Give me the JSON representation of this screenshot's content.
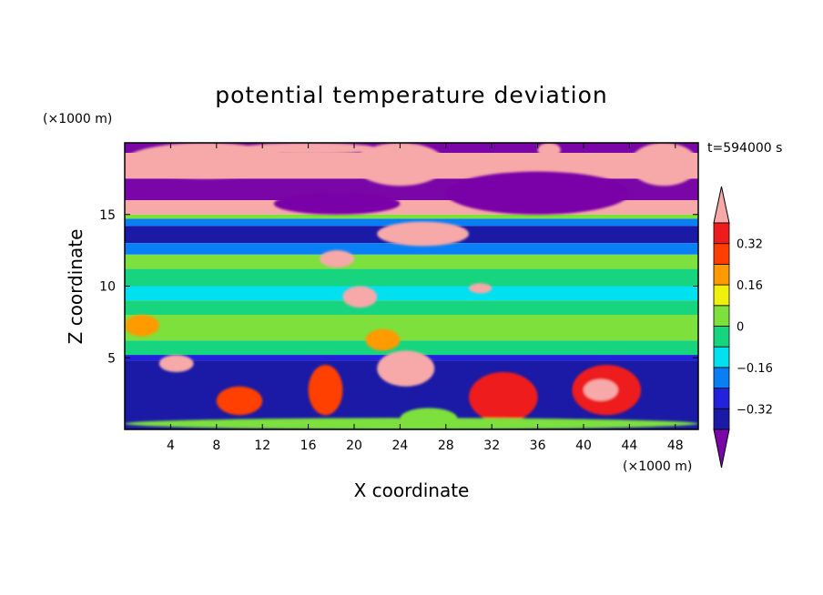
{
  "chart_data": {
    "type": "heatmap",
    "title": "potential temperature deviation",
    "xlabel": "X coordinate",
    "ylabel": "Z coordinate",
    "x_unit": "(×1000 m)",
    "y_unit": "(×1000 m)",
    "time_label": "t=594000 s",
    "xlim": [
      0,
      50
    ],
    "ylim": [
      0,
      20
    ],
    "x_ticks": [
      4,
      8,
      12,
      16,
      20,
      24,
      28,
      32,
      36,
      40,
      44,
      48
    ],
    "y_ticks": [
      5,
      10,
      15
    ],
    "x_tick_labels": [
      "4",
      "8",
      "12",
      "16",
      "20",
      "24",
      "28",
      "32",
      "36",
      "40",
      "44",
      "48"
    ],
    "y_tick_labels": [
      "5",
      "10",
      "15"
    ],
    "grid": false,
    "legend": "right",
    "colorbar": {
      "levels": [
        -0.4,
        -0.32,
        -0.24,
        -0.16,
        -0.08,
        0,
        0.08,
        0.16,
        0.24,
        0.32,
        0.4
      ],
      "labels": [
        {
          "value": 0.32,
          "text": "0.32"
        },
        {
          "value": 0.16,
          "text": "0.16"
        },
        {
          "value": 0,
          "text": "0"
        },
        {
          "value": -0.16,
          "text": "−0.16"
        },
        {
          "value": -0.32,
          "text": "−0.32"
        }
      ],
      "colors": [
        "#7a06a8",
        "#1a1aa6",
        "#2222dd",
        "#0a7ff5",
        "#00e0ee",
        "#17d47f",
        "#7de03c",
        "#f0f00e",
        "#ff9a00",
        "#ff3f00",
        "#ee1c1c",
        "#f7a8a8"
      ]
    },
    "bands": [
      {
        "z": [
          19.3,
          20.0
        ],
        "value": -0.45
      },
      {
        "z": [
          17.5,
          19.3
        ],
        "value": 0.45
      },
      {
        "z": [
          16.0,
          17.5
        ],
        "value": -0.45
      },
      {
        "z": [
          15.0,
          16.0
        ],
        "value": 0.45
      },
      {
        "z": [
          14.7,
          15.0
        ],
        "value": 0.05
      },
      {
        "z": [
          14.2,
          14.7
        ],
        "value": -0.2
      },
      {
        "z": [
          13.0,
          14.2
        ],
        "value": -0.36
      },
      {
        "z": [
          12.2,
          13.0
        ],
        "value": -0.2
      },
      {
        "z": [
          11.2,
          12.2
        ],
        "value": 0.05
      },
      {
        "z": [
          10.0,
          11.2
        ],
        "value": -0.05
      },
      {
        "z": [
          9.0,
          10.0
        ],
        "value": -0.12
      },
      {
        "z": [
          8.0,
          9.0
        ],
        "value": -0.05
      },
      {
        "z": [
          6.2,
          8.0
        ],
        "value": 0.05
      },
      {
        "z": [
          5.2,
          6.2
        ],
        "value": -0.05
      },
      {
        "z": [
          4.8,
          5.2
        ],
        "value": -0.28
      },
      {
        "z": [
          0.0,
          4.8
        ],
        "value": -0.4
      }
    ],
    "features": [
      {
        "x": [
          0,
          14
        ],
        "z": [
          17.5,
          20.0
        ],
        "value": 0.45
      },
      {
        "x": [
          10,
          22
        ],
        "z": [
          19.2,
          20.0
        ],
        "value": 0.45
      },
      {
        "x": [
          20,
          28
        ],
        "z": [
          17.0,
          20.0
        ],
        "value": 0.45
      },
      {
        "x": [
          36,
          38
        ],
        "z": [
          19.0,
          20.0
        ],
        "value": 0.45
      },
      {
        "x": [
          44,
          50
        ],
        "z": [
          17.0,
          20.0
        ],
        "value": 0.45
      },
      {
        "x": [
          13,
          24
        ],
        "z": [
          15.0,
          16.5
        ],
        "value": -0.45
      },
      {
        "x": [
          28,
          44
        ],
        "z": [
          15.0,
          18.0
        ],
        "value": -0.45
      },
      {
        "x": [
          22,
          30
        ],
        "z": [
          12.8,
          14.5
        ],
        "value": 0.45
      },
      {
        "x": [
          17,
          20
        ],
        "z": [
          11.3,
          12.5
        ],
        "value": 0.45
      },
      {
        "x": [
          19,
          22
        ],
        "z": [
          8.5,
          10.0
        ],
        "value": 0.45
      },
      {
        "x": [
          30,
          32
        ],
        "z": [
          9.5,
          10.2
        ],
        "value": 0.45
      },
      {
        "x": [
          0,
          3
        ],
        "z": [
          6.5,
          8.0
        ],
        "value": 0.2
      },
      {
        "x": [
          21,
          24
        ],
        "z": [
          5.5,
          7.0
        ],
        "value": 0.2
      },
      {
        "x": [
          22,
          27
        ],
        "z": [
          3.0,
          5.5
        ],
        "value": 0.45
      },
      {
        "x": [
          3,
          6
        ],
        "z": [
          4.0,
          5.2
        ],
        "value": 0.45
      },
      {
        "x": [
          8,
          12
        ],
        "z": [
          1.0,
          3.0
        ],
        "value": 0.24
      },
      {
        "x": [
          16,
          19
        ],
        "z": [
          1.0,
          4.5
        ],
        "value": 0.3
      },
      {
        "x": [
          30,
          36
        ],
        "z": [
          0.5,
          4.0
        ],
        "value": 0.35
      },
      {
        "x": [
          39,
          45
        ],
        "z": [
          1.0,
          4.5
        ],
        "value": 0.32
      },
      {
        "x": [
          40,
          43
        ],
        "z": [
          2.0,
          3.5
        ],
        "value": 0.45
      },
      {
        "x": [
          0,
          50
        ],
        "z": [
          0.0,
          0.8
        ],
        "value": 0.05
      },
      {
        "x": [
          24,
          29
        ],
        "z": [
          0.0,
          1.5
        ],
        "value": 0.05
      }
    ]
  }
}
